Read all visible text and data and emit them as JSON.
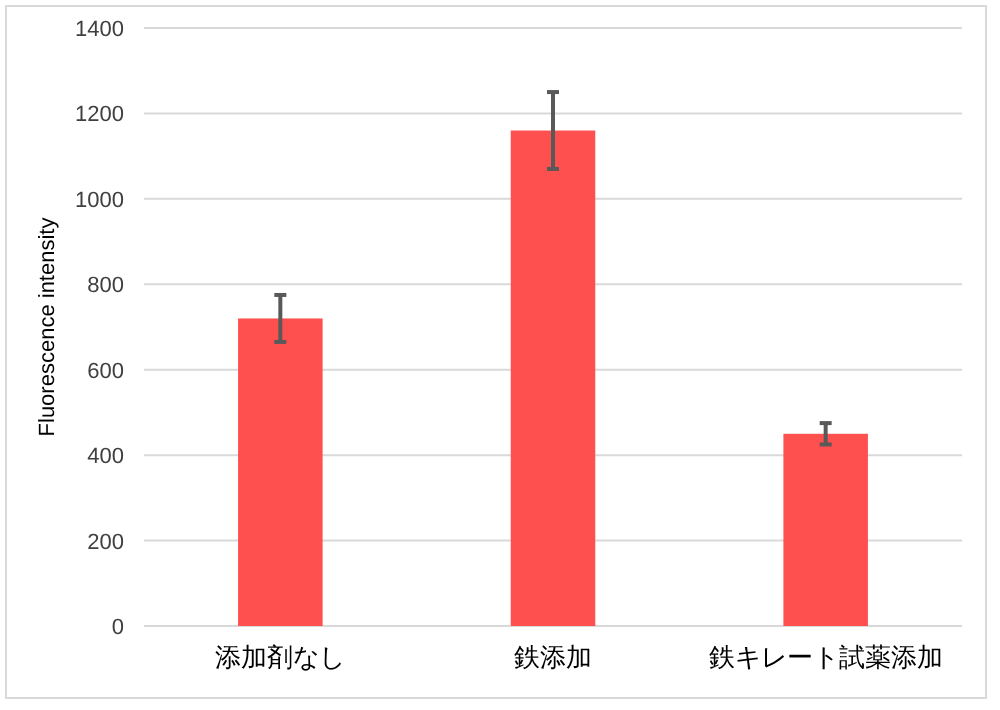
{
  "chart_data": {
    "type": "bar",
    "ylabel": "Fluorescence intensity",
    "categories": [
      "添加剤なし",
      "鉄添加",
      "鉄キレート試薬添加"
    ],
    "values": [
      720,
      1160,
      450
    ],
    "errors": [
      55,
      90,
      25
    ],
    "color": "#ff5050",
    "ylim": [
      0,
      1400
    ],
    "yticks": [
      0,
      200,
      400,
      600,
      800,
      1000,
      1200,
      1400
    ],
    "grid": "y"
  }
}
